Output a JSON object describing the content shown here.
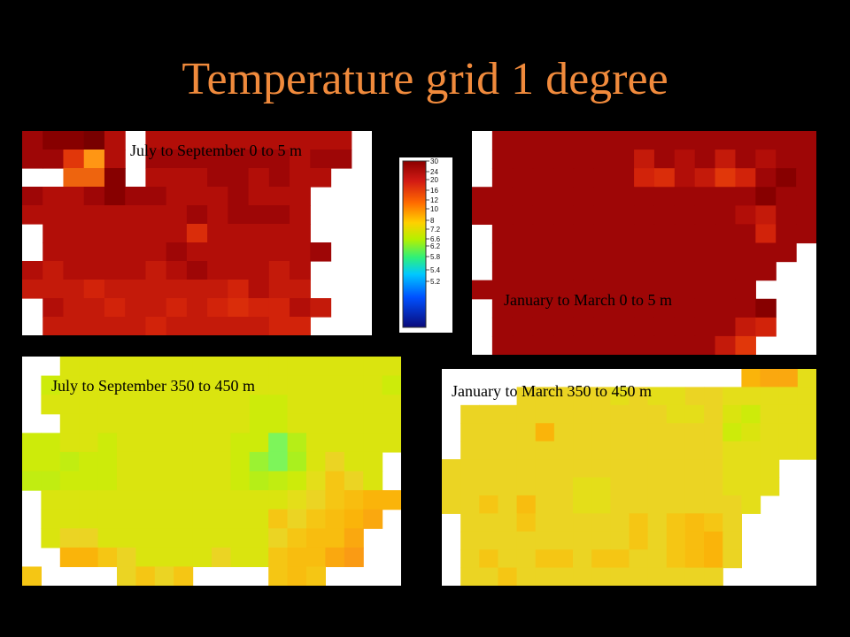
{
  "title": "Temperature grid 1 degree",
  "colors": {
    "title": "#f08a3c",
    "background": "#000000",
    "panel_background": "#ffffff"
  },
  "chart_data": [
    {
      "type": "heatmap",
      "label": "July to September 0 to 5 m",
      "values": [
        [
          25,
          26,
          26,
          27,
          24,
          null,
          24,
          24,
          24,
          24,
          24,
          24,
          24,
          24,
          24,
          24,
          null
        ],
        [
          25,
          25,
          20,
          14,
          24,
          null,
          25,
          25,
          25,
          25,
          25,
          25,
          25,
          24,
          25,
          25,
          null
        ],
        [
          null,
          null,
          17,
          17,
          26,
          null,
          24,
          24,
          24,
          25,
          25,
          24,
          25,
          24,
          24,
          null,
          null
        ],
        [
          25,
          24,
          24,
          25,
          26,
          25,
          25,
          24,
          24,
          24,
          25,
          24,
          24,
          24,
          null,
          null,
          null
        ],
        [
          24,
          24,
          24,
          24,
          24,
          24,
          24,
          24,
          25,
          24,
          25,
          25,
          25,
          24,
          null,
          null,
          null
        ],
        [
          null,
          24,
          24,
          24,
          24,
          24,
          24,
          24,
          21,
          24,
          24,
          24,
          24,
          24,
          null,
          null,
          null
        ],
        [
          null,
          24,
          24,
          24,
          24,
          24,
          24,
          25,
          24,
          24,
          24,
          24,
          24,
          24,
          25,
          null,
          null
        ],
        [
          24,
          23,
          24,
          24,
          24,
          24,
          23,
          24,
          25,
          24,
          24,
          24,
          23,
          24,
          null,
          null,
          null
        ],
        [
          23,
          23,
          23,
          22,
          23,
          23,
          23,
          23,
          23,
          23,
          22,
          24,
          23,
          23,
          null,
          null,
          null
        ],
        [
          null,
          24,
          23,
          23,
          22,
          23,
          23,
          22,
          23,
          22,
          21,
          22,
          22,
          24,
          23,
          null,
          null
        ],
        [
          null,
          23,
          23,
          23,
          23,
          23,
          22,
          23,
          23,
          23,
          23,
          23,
          22,
          22,
          null,
          null,
          null
        ]
      ]
    },
    {
      "type": "heatmap",
      "label": "January to March 0 to 5 m",
      "values": [
        [
          null,
          25,
          25,
          25,
          25,
          25,
          25,
          25,
          25,
          25,
          25,
          25,
          25,
          25,
          25,
          25,
          25
        ],
        [
          null,
          25,
          25,
          25,
          25,
          25,
          25,
          25,
          23,
          25,
          24,
          25,
          23,
          25,
          24,
          25,
          25
        ],
        [
          null,
          25,
          25,
          25,
          25,
          25,
          25,
          25,
          22,
          21,
          24,
          23,
          20,
          22,
          25,
          26,
          25
        ],
        [
          25,
          25,
          25,
          25,
          25,
          25,
          25,
          25,
          25,
          25,
          25,
          25,
          25,
          25,
          26,
          25,
          25
        ],
        [
          25,
          25,
          25,
          25,
          25,
          25,
          25,
          25,
          25,
          25,
          25,
          25,
          25,
          24,
          23,
          25,
          25
        ],
        [
          null,
          25,
          25,
          25,
          25,
          25,
          25,
          25,
          25,
          25,
          25,
          25,
          25,
          25,
          22,
          25,
          25
        ],
        [
          null,
          25,
          25,
          25,
          25,
          25,
          25,
          25,
          25,
          25,
          25,
          25,
          25,
          25,
          25,
          25,
          null
        ],
        [
          null,
          25,
          25,
          25,
          25,
          25,
          25,
          25,
          25,
          25,
          25,
          25,
          25,
          25,
          25,
          null,
          null
        ],
        [
          25,
          25,
          25,
          25,
          25,
          25,
          25,
          25,
          25,
          25,
          25,
          25,
          25,
          25,
          null,
          null,
          null
        ],
        [
          null,
          25,
          25,
          25,
          25,
          25,
          25,
          25,
          25,
          25,
          25,
          25,
          25,
          25,
          26,
          null,
          null
        ],
        [
          null,
          25,
          25,
          25,
          25,
          25,
          25,
          25,
          25,
          25,
          25,
          25,
          25,
          23,
          22,
          null,
          null
        ],
        [
          null,
          25,
          25,
          25,
          25,
          25,
          25,
          25,
          25,
          25,
          25,
          25,
          23,
          20,
          null,
          null,
          null
        ]
      ]
    },
    {
      "type": "heatmap",
      "label": "July to September 350 to 450 m",
      "values": [
        [
          null,
          null,
          10.9,
          10.9,
          10.9,
          10.9,
          10.9,
          10.9,
          10.9,
          10.9,
          10.9,
          10.9,
          10.9,
          10.9,
          10.9,
          10.9,
          10.9,
          10.9,
          10.9,
          10.9
        ],
        [
          null,
          10.8,
          10.9,
          10.9,
          10.9,
          10.9,
          10.9,
          10.9,
          10.9,
          10.9,
          10.9,
          10.9,
          10.9,
          10.9,
          10.9,
          10.9,
          10.9,
          10.9,
          10.9,
          10.8
        ],
        [
          null,
          10.9,
          10.9,
          10.9,
          10.9,
          10.9,
          10.9,
          10.9,
          10.9,
          10.9,
          10.9,
          10.9,
          10.8,
          10.8,
          10.9,
          10.9,
          10.9,
          10.9,
          10.9,
          10.9
        ],
        [
          null,
          null,
          10.9,
          10.9,
          10.9,
          10.9,
          10.9,
          10.9,
          10.9,
          10.9,
          10.9,
          10.9,
          10.8,
          10.8,
          10.9,
          10.9,
          10.9,
          10.9,
          10.9,
          10.9
        ],
        [
          10.8,
          10.8,
          10.9,
          10.9,
          10.8,
          10.9,
          10.9,
          10.9,
          10.9,
          10.9,
          10.9,
          10.8,
          10.8,
          10.2,
          10.6,
          10.9,
          10.9,
          10.9,
          10.9,
          10.9
        ],
        [
          10.8,
          10.8,
          10.7,
          10.8,
          10.8,
          10.9,
          10.9,
          10.9,
          10.9,
          10.9,
          10.9,
          10.8,
          10.4,
          10.2,
          10.5,
          10.9,
          11.2,
          10.9,
          10.9,
          null
        ],
        [
          10.7,
          10.7,
          10.8,
          10.8,
          10.8,
          10.9,
          10.9,
          10.9,
          10.9,
          10.9,
          10.9,
          10.8,
          10.6,
          10.7,
          10.8,
          11.1,
          11.3,
          11.2,
          10.9,
          null
        ],
        [
          null,
          10.9,
          10.9,
          10.9,
          10.9,
          10.9,
          10.9,
          10.9,
          10.9,
          10.9,
          10.9,
          10.9,
          10.9,
          10.9,
          11.1,
          11.2,
          11.3,
          11.4,
          11.5,
          11.5
        ],
        [
          null,
          10.9,
          10.9,
          10.9,
          10.9,
          10.9,
          10.9,
          10.9,
          10.9,
          10.9,
          10.9,
          10.9,
          10.9,
          11.3,
          11.2,
          11.3,
          11.4,
          11.5,
          11.6,
          null
        ],
        [
          null,
          10.9,
          11.2,
          11.2,
          10.9,
          10.9,
          10.9,
          10.9,
          10.9,
          10.9,
          10.9,
          10.9,
          10.9,
          11.2,
          11.3,
          11.4,
          11.4,
          11.6,
          null,
          null
        ],
        [
          null,
          null,
          11.5,
          11.5,
          11.3,
          11.2,
          10.9,
          10.9,
          10.9,
          10.9,
          11.2,
          10.9,
          10.9,
          11.3,
          11.4,
          11.4,
          11.6,
          11.7,
          null,
          null
        ],
        [
          11.3,
          null,
          null,
          null,
          null,
          11.2,
          11.3,
          11.2,
          11.3,
          null,
          null,
          null,
          null,
          11.3,
          11.4,
          11.3,
          null,
          null,
          null,
          null
        ]
      ]
    },
    {
      "type": "heatmap",
      "label": "January to March 350 to 450 m",
      "values": [
        [
          null,
          null,
          null,
          null,
          null,
          null,
          null,
          null,
          null,
          null,
          null,
          null,
          null,
          null,
          null,
          null,
          11.5,
          11.6,
          11.6,
          11.1
        ],
        [
          null,
          null,
          null,
          null,
          11.2,
          11.2,
          11.2,
          11.2,
          11.2,
          11.1,
          11.2,
          11.1,
          11.1,
          11.2,
          11.2,
          11.1,
          11.1,
          11.1,
          11.1,
          11.1
        ],
        [
          null,
          11.2,
          11.2,
          11.2,
          11.2,
          11.2,
          11.2,
          11.2,
          11.2,
          11.2,
          11.2,
          11.2,
          11.1,
          11.1,
          11.2,
          10.9,
          10.8,
          11.1,
          11.1,
          11.1
        ],
        [
          null,
          11.2,
          11.2,
          11.2,
          11.2,
          11.5,
          11.2,
          11.2,
          11.2,
          11.2,
          11.2,
          11.2,
          11.2,
          11.2,
          11.2,
          10.8,
          10.9,
          11.1,
          11.1,
          11.1
        ],
        [
          null,
          11.2,
          11.2,
          11.2,
          11.2,
          11.2,
          11.2,
          11.2,
          11.2,
          11.2,
          11.2,
          11.2,
          11.2,
          11.2,
          11.2,
          11.1,
          11.1,
          11.1,
          11.1,
          11.1
        ],
        [
          11.2,
          11.2,
          11.2,
          11.2,
          11.2,
          11.2,
          11.2,
          11.2,
          11.2,
          11.2,
          11.2,
          11.2,
          11.2,
          11.2,
          11.2,
          11.1,
          11.1,
          11.1,
          null,
          null
        ],
        [
          11.2,
          11.2,
          11.2,
          11.2,
          11.2,
          11.2,
          11.2,
          11.1,
          11.1,
          11.2,
          11.2,
          11.2,
          11.2,
          11.2,
          11.2,
          11.1,
          11.1,
          11.1,
          null,
          null
        ],
        [
          11.2,
          11.2,
          11.3,
          11.2,
          11.4,
          11.2,
          11.2,
          11.1,
          11.1,
          11.2,
          11.2,
          11.2,
          11.2,
          11.2,
          11.2,
          11.2,
          11.1,
          null,
          null,
          null
        ],
        [
          null,
          11.2,
          11.2,
          11.2,
          11.3,
          11.2,
          11.2,
          11.2,
          11.2,
          11.2,
          11.3,
          11.2,
          11.3,
          11.4,
          11.3,
          11.2,
          null,
          null,
          null,
          null
        ],
        [
          null,
          11.2,
          11.2,
          11.2,
          11.2,
          11.2,
          11.2,
          11.2,
          11.2,
          11.2,
          11.3,
          11.2,
          11.3,
          11.4,
          11.5,
          11.2,
          null,
          null,
          null,
          null
        ],
        [
          null,
          11.2,
          11.3,
          11.2,
          11.2,
          11.3,
          11.3,
          11.2,
          11.3,
          11.3,
          11.2,
          11.2,
          11.3,
          11.4,
          11.5,
          11.2,
          null,
          null,
          null,
          null
        ],
        [
          null,
          11.2,
          11.2,
          11.3,
          11.2,
          11.2,
          11.2,
          11.2,
          11.2,
          11.2,
          11.2,
          11.2,
          11.2,
          11.2,
          11.2,
          null,
          null,
          null,
          null,
          null
        ]
      ]
    }
  ],
  "colorbar": {
    "ticks": [
      "30",
      "24",
      "20",
      "16",
      "12",
      "10",
      "8",
      "7.2",
      "6.6",
      "6.2",
      "5.8",
      "5.4",
      "5.2"
    ]
  }
}
